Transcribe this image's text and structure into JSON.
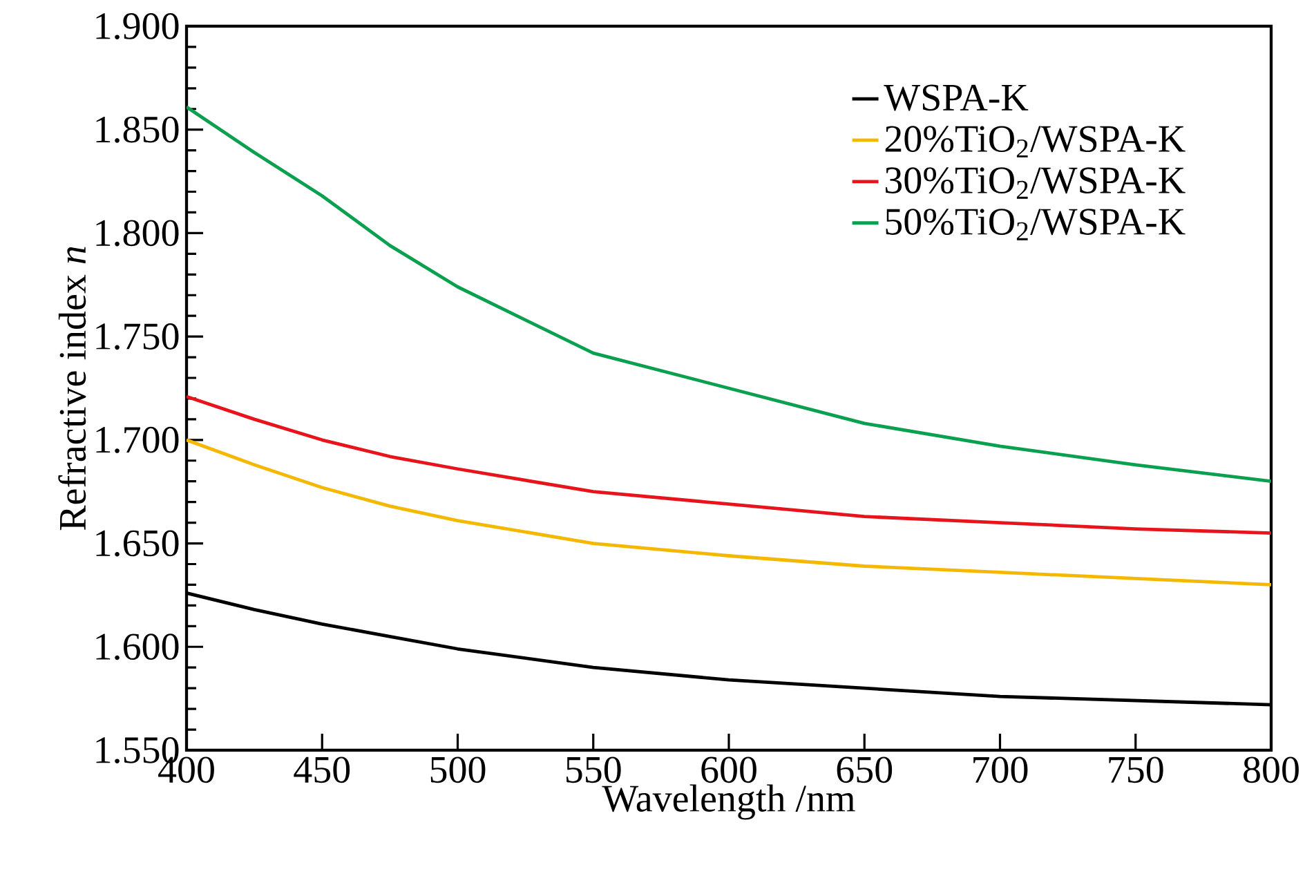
{
  "chart_data": {
    "type": "line",
    "xlabel": "Wavelength /nm",
    "ylabel": "Refractive index *n*",
    "x": [
      400,
      425,
      450,
      475,
      500,
      550,
      600,
      650,
      700,
      750,
      800
    ],
    "series": [
      {
        "name": "WSPA-K",
        "color": "#000000",
        "values": [
          1.626,
          1.618,
          1.611,
          1.605,
          1.599,
          1.59,
          1.584,
          1.58,
          1.576,
          1.574,
          1.572
        ]
      },
      {
        "name": "20%TiO$_{2}$/WSPA-K",
        "color": "#f5b800",
        "values": [
          1.7,
          1.688,
          1.677,
          1.668,
          1.661,
          1.65,
          1.644,
          1.639,
          1.636,
          1.633,
          1.63
        ]
      },
      {
        "name": "30%TiO$_{2}$/WSPA-K",
        "color": "#e8141c",
        "values": [
          1.721,
          1.71,
          1.7,
          1.692,
          1.686,
          1.675,
          1.669,
          1.663,
          1.66,
          1.657,
          1.655
        ]
      },
      {
        "name": "50%TiO$_{2}$/WSPA-K",
        "color": "#0aa04f",
        "values": [
          1.861,
          1.839,
          1.818,
          1.794,
          1.774,
          1.742,
          1.725,
          1.708,
          1.697,
          1.688,
          1.68
        ]
      }
    ],
    "xlim": [
      400,
      800
    ],
    "xticks": [
      400,
      450,
      500,
      550,
      600,
      650,
      700,
      750,
      800
    ],
    "ylim": [
      1.55,
      1.9
    ],
    "yticks": [
      {
        "value": 1.55,
        "label": "1.550"
      },
      {
        "value": 1.6,
        "label": "1.600"
      },
      {
        "value": 1.65,
        "label": "1.650"
      },
      {
        "value": 1.7,
        "label": "1.700"
      },
      {
        "value": 1.75,
        "label": "1.750"
      },
      {
        "value": 1.8,
        "label": "1.800"
      },
      {
        "value": 1.85,
        "label": "1.850"
      },
      {
        "value": 1.9,
        "label": "1.900"
      }
    ],
    "grid": false,
    "legend": "top right",
    "marker": "none",
    "line_style": "solid"
  }
}
